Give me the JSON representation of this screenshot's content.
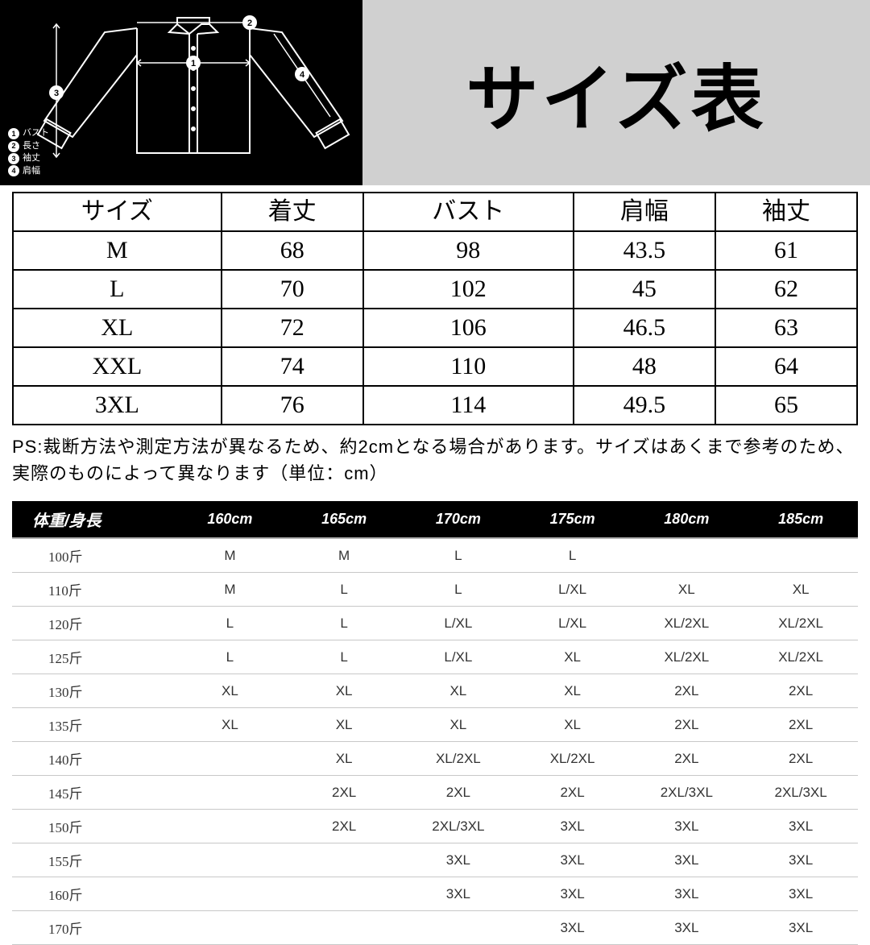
{
  "title": "サイズ表",
  "legend": {
    "items": [
      {
        "num": "1",
        "label": "バスト"
      },
      {
        "num": "2",
        "label": "長さ"
      },
      {
        "num": "3",
        "label": "袖丈"
      },
      {
        "num": "4",
        "label": "肩幅"
      }
    ]
  },
  "size_table": {
    "columns": [
      "サイズ",
      "着丈",
      "バスト",
      "肩幅",
      "袖丈"
    ],
    "rows": [
      [
        "M",
        "68",
        "98",
        "43.5",
        "61"
      ],
      [
        "L",
        "70",
        "102",
        "45",
        "62"
      ],
      [
        "XL",
        "72",
        "106",
        "46.5",
        "63"
      ],
      [
        "XXL",
        "74",
        "110",
        "48",
        "64"
      ],
      [
        "3XL",
        "76",
        "114",
        "49.5",
        "65"
      ]
    ]
  },
  "note": "PS:裁断方法や測定方法が異なるため、約2cmとなる場合があります。サイズはあくまで参考のため、実際のものによって異なります（単位：cm）",
  "match_table": {
    "header": [
      "体重/身長",
      "160cm",
      "165cm",
      "170cm",
      "175cm",
      "180cm",
      "185cm"
    ],
    "col_widths": [
      "200px",
      "142px",
      "142px",
      "142px",
      "142px",
      "142px",
      "142px"
    ],
    "rows": [
      {
        "label": "100斤",
        "cells": [
          "M",
          "M",
          "L",
          "L",
          "",
          ""
        ]
      },
      {
        "label": "110斤",
        "cells": [
          "M",
          "L",
          "L",
          "L/XL",
          "XL",
          "XL"
        ]
      },
      {
        "label": "120斤",
        "cells": [
          "L",
          "L",
          "L/XL",
          "L/XL",
          "XL/2XL",
          "XL/2XL"
        ]
      },
      {
        "label": "125斤",
        "cells": [
          "L",
          "L",
          "L/XL",
          "XL",
          "XL/2XL",
          "XL/2XL"
        ]
      },
      {
        "label": "130斤",
        "cells": [
          "XL",
          "XL",
          "XL",
          "XL",
          "2XL",
          "2XL"
        ]
      },
      {
        "label": "135斤",
        "cells": [
          "XL",
          "XL",
          "XL",
          "XL",
          "2XL",
          "2XL"
        ]
      },
      {
        "label": "140斤",
        "cells": [
          "",
          "XL",
          "XL/2XL",
          "XL/2XL",
          "2XL",
          "2XL"
        ]
      },
      {
        "label": "145斤",
        "cells": [
          "",
          "2XL",
          "2XL",
          "2XL",
          "2XL/3XL",
          "2XL/3XL"
        ]
      },
      {
        "label": "150斤",
        "cells": [
          "",
          "2XL",
          "2XL/3XL",
          "3XL",
          "3XL",
          "3XL"
        ]
      },
      {
        "label": "155斤",
        "cells": [
          "",
          "",
          "3XL",
          "3XL",
          "3XL",
          "3XL"
        ]
      },
      {
        "label": "160斤",
        "cells": [
          "",
          "",
          "3XL",
          "3XL",
          "3XL",
          "3XL"
        ]
      },
      {
        "label": "170斤",
        "cells": [
          "",
          "",
          "",
          "3XL",
          "3XL",
          "3XL"
        ]
      }
    ]
  },
  "colors": {
    "diagram_bg": "#000000",
    "title_bg": "#d0d0d0",
    "border": "#000000",
    "match_header_bg": "#000000",
    "row_border": "#c8c8c8"
  }
}
